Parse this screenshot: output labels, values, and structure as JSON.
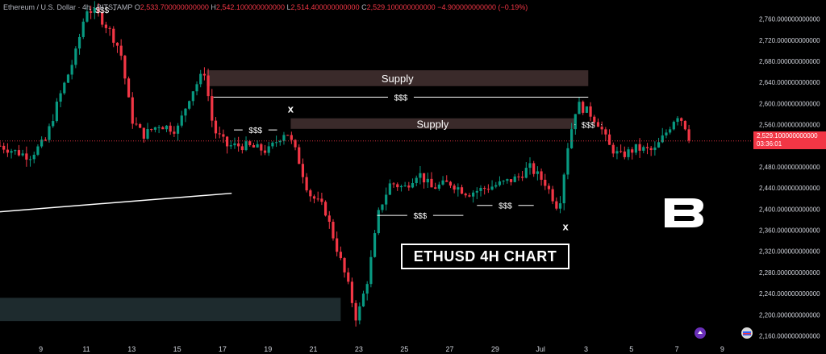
{
  "header": {
    "symbol": "Ethereum / U.S. Dollar · 4h · BITSTAMP",
    "o_label": "O",
    "o_value": "2,533.700000000000",
    "h_label": "H",
    "h_value": "2,542.100000000000",
    "l_label": "L",
    "l_value": "2,514.400000000000",
    "c_label": "C",
    "c_value": "2,529.100000000000",
    "change": "−4.900000000000 (−0.19%)"
  },
  "price_tag": {
    "price": "2,529.100000000000",
    "countdown": "03:36:01"
  },
  "title_box": "ETHUSD 4H CHART",
  "colors": {
    "up": "#089981",
    "down": "#f23645",
    "supply": "#3a2a2a",
    "demand": "#1e2b2e"
  },
  "chart_data": {
    "type": "candlestick",
    "ylim": [
      2150,
      2790
    ],
    "y_ticks": [
      2160,
      2200,
      2240,
      2280,
      2320,
      2360,
      2400,
      2440,
      2480,
      2520,
      2560,
      2600,
      2640,
      2680,
      2720,
      2760
    ],
    "y_tick_labels": [
      "2,160.000000000000",
      "2,200.000000000000",
      "2,240.000000000000",
      "2,280.000000000000",
      "2,320.000000000000",
      "2,360.000000000000",
      "2,400.000000000000",
      "2,440.000000000000",
      "2,480.000000000000",
      "2,520.000000000000",
      "2,560.000000000000",
      "2,600.000000000000",
      "2,640.000000000000",
      "2,680.000000000000",
      "2,720.000000000000",
      "2,760.000000000000"
    ],
    "x_tick_labels": [
      "9",
      "11",
      "13",
      "15",
      "17",
      "19",
      "21",
      "23",
      "25",
      "27",
      "29",
      "Jul",
      "3",
      "5",
      "7",
      "9"
    ],
    "x_tick_days": [
      9,
      11,
      13,
      15,
      17,
      19,
      21,
      23,
      25,
      27,
      29,
      31,
      33,
      35,
      37,
      39
    ],
    "x_range_days": [
      7.2,
      40.3
    ],
    "anchors": [
      [
        7.2,
        2520
      ],
      [
        7.8,
        2510
      ],
      [
        8.5,
        2500
      ],
      [
        9.2,
        2530
      ],
      [
        9.8,
        2610
      ],
      [
        10.5,
        2690
      ],
      [
        11.0,
        2780
      ],
      [
        11.5,
        2770
      ],
      [
        12.0,
        2740
      ],
      [
        12.5,
        2700
      ],
      [
        13.0,
        2570
      ],
      [
        13.5,
        2540
      ],
      [
        14.2,
        2560
      ],
      [
        15.0,
        2550
      ],
      [
        15.6,
        2620
      ],
      [
        16.2,
        2660
      ],
      [
        16.6,
        2550
      ],
      [
        17.2,
        2520
      ],
      [
        18.0,
        2520
      ],
      [
        19.0,
        2510
      ],
      [
        19.8,
        2550
      ],
      [
        20.3,
        2500
      ],
      [
        20.8,
        2430
      ],
      [
        21.5,
        2400
      ],
      [
        22.0,
        2330
      ],
      [
        22.5,
        2260
      ],
      [
        22.9,
        2190
      ],
      [
        23.4,
        2270
      ],
      [
        23.9,
        2400
      ],
      [
        24.4,
        2450
      ],
      [
        25.0,
        2440
      ],
      [
        25.6,
        2470
      ],
      [
        26.2,
        2440
      ],
      [
        27.0,
        2450
      ],
      [
        27.8,
        2430
      ],
      [
        28.6,
        2440
      ],
      [
        29.4,
        2450
      ],
      [
        30.0,
        2460
      ],
      [
        30.5,
        2480
      ],
      [
        31.2,
        2450
      ],
      [
        31.8,
        2400
      ],
      [
        32.2,
        2520
      ],
      [
        32.6,
        2600
      ],
      [
        33.2,
        2580
      ],
      [
        33.6,
        2560
      ],
      [
        34.0,
        2520
      ],
      [
        34.5,
        2500
      ],
      [
        35.2,
        2515
      ],
      [
        36.0,
        2510
      ],
      [
        36.6,
        2550
      ],
      [
        37.0,
        2580
      ],
      [
        37.3,
        2565
      ],
      [
        37.6,
        2529
      ]
    ],
    "annotations": [
      {
        "type": "zone",
        "label": "Supply",
        "x0": 16.3,
        "x1": 33.1,
        "y0": 2633,
        "y1": 2663,
        "color": "#3a2a2a"
      },
      {
        "type": "zone",
        "label": "Supply",
        "x0": 20.0,
        "x1": 32.5,
        "y0": 2552,
        "y1": 2572,
        "color": "#3a2a2a"
      },
      {
        "type": "zone",
        "label": "",
        "x0": 7.2,
        "x1": 22.2,
        "y0": 2188,
        "y1": 2232,
        "color": "#1e2b2e"
      },
      {
        "type": "liquidity",
        "label": "$$$",
        "x0": 16.6,
        "x1": 33.1,
        "y": 2612
      },
      {
        "type": "liquidity",
        "label": "$$$",
        "x0": 17.5,
        "x1": 19.4,
        "y": 2550
      },
      {
        "type": "liquidity",
        "label": "$$$",
        "x0": 23.8,
        "x1": 27.6,
        "y": 2388
      },
      {
        "type": "liquidity",
        "label": "$$$",
        "x0": 28.2,
        "x1": 30.7,
        "y": 2407
      },
      {
        "type": "liquidity",
        "label": "$$$",
        "x0": 32.5,
        "x1": 33.7,
        "y": 2560
      },
      {
        "type": "liquidity",
        "label": "$$$",
        "x0": 11.2,
        "x1": 12.2,
        "y": 2778
      },
      {
        "type": "marker",
        "label": "x",
        "x": 20.0,
        "y": 2583
      },
      {
        "type": "marker",
        "label": "x",
        "x": 32.1,
        "y": 2360
      },
      {
        "type": "trendline",
        "x0": 7.2,
        "y0": 2395,
        "x1": 17.4,
        "y1": 2430
      }
    ],
    "last_price": 2529.1
  }
}
